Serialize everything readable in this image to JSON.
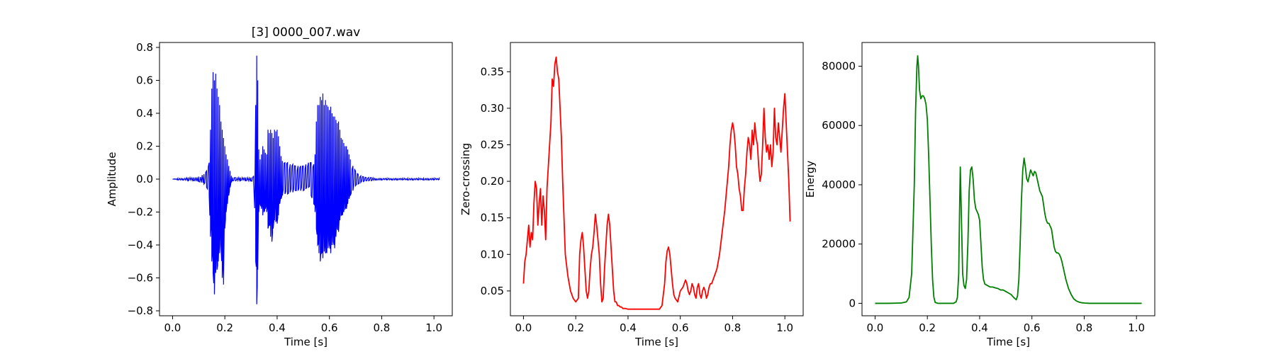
{
  "chart_data": [
    {
      "type": "line",
      "title": "[3] 0000_007.wav",
      "xlabel": "Time [s]",
      "ylabel": "Amplitude",
      "xlim": [
        -0.05,
        1.07
      ],
      "ylim": [
        -0.83,
        0.83
      ],
      "xticks": [
        0.0,
        0.2,
        0.4,
        0.6,
        0.8,
        1.0
      ],
      "xtick_labels": [
        "0.0",
        "0.2",
        "0.4",
        "0.6",
        "0.8",
        "1.0"
      ],
      "yticks": [
        -0.8,
        -0.6,
        -0.4,
        -0.2,
        0.0,
        0.2,
        0.4,
        0.6,
        0.8
      ],
      "ytick_labels": [
        "−0.8",
        "−0.6",
        "−0.4",
        "−0.2",
        "0.0",
        "0.2",
        "0.4",
        "0.6",
        "0.8"
      ],
      "grid": false,
      "color": "#0000ff",
      "series": [
        {
          "x": [
            0.0,
            0.02,
            0.04,
            0.06,
            0.08,
            0.1,
            0.12,
            0.13,
            0.14,
            0.145,
            0.15,
            0.155,
            0.16,
            0.165,
            0.17,
            0.175,
            0.18,
            0.185,
            0.19,
            0.195,
            0.2,
            0.205,
            0.21,
            0.215,
            0.22,
            0.225,
            0.23,
            0.24,
            0.26,
            0.28,
            0.3,
            0.31,
            0.318,
            0.322,
            0.326,
            0.33,
            0.335,
            0.34,
            0.345,
            0.35,
            0.355,
            0.36,
            0.365,
            0.37,
            0.375,
            0.38,
            0.385,
            0.39,
            0.395,
            0.4,
            0.405,
            0.41,
            0.415,
            0.42,
            0.43,
            0.44,
            0.45,
            0.46,
            0.47,
            0.48,
            0.49,
            0.5,
            0.51,
            0.52,
            0.53,
            0.54,
            0.545,
            0.55,
            0.555,
            0.56,
            0.565,
            0.57,
            0.575,
            0.58,
            0.585,
            0.59,
            0.595,
            0.6,
            0.605,
            0.61,
            0.615,
            0.62,
            0.625,
            0.63,
            0.635,
            0.64,
            0.645,
            0.65,
            0.655,
            0.66,
            0.665,
            0.67,
            0.675,
            0.68,
            0.69,
            0.7,
            0.71,
            0.72,
            0.73,
            0.74,
            0.75,
            0.76,
            0.78,
            0.8,
            0.82,
            0.84,
            0.86,
            0.88,
            0.9,
            0.92,
            0.94,
            0.96,
            0.98,
            1.0,
            1.02
          ],
          "y_upper": [
            0.0,
            0.005,
            0.005,
            0.01,
            0.01,
            0.015,
            0.03,
            0.05,
            0.1,
            0.3,
            0.55,
            0.65,
            0.6,
            0.64,
            0.55,
            0.5,
            0.45,
            0.35,
            0.3,
            0.25,
            0.2,
            0.15,
            0.12,
            0.08,
            0.05,
            0.02,
            0.01,
            0.01,
            0.01,
            0.01,
            0.01,
            0.02,
            0.45,
            0.75,
            0.6,
            0.18,
            0.12,
            0.15,
            0.2,
            0.18,
            0.16,
            0.15,
            0.3,
            0.28,
            0.3,
            0.28,
            0.25,
            0.3,
            0.29,
            0.3,
            0.26,
            0.2,
            0.14,
            0.11,
            0.1,
            0.1,
            0.09,
            0.09,
            0.08,
            0.08,
            0.08,
            0.08,
            0.09,
            0.1,
            0.1,
            0.09,
            0.15,
            0.35,
            0.45,
            0.45,
            0.5,
            0.48,
            0.52,
            0.45,
            0.48,
            0.45,
            0.44,
            0.42,
            0.44,
            0.4,
            0.38,
            0.38,
            0.36,
            0.34,
            0.35,
            0.3,
            0.25,
            0.24,
            0.22,
            0.2,
            0.2,
            0.18,
            0.15,
            0.12,
            0.08,
            0.05,
            0.03,
            0.02,
            0.015,
            0.01,
            0.01,
            0.01,
            0.005,
            0.005,
            0.005,
            0.005,
            0.005,
            0.005,
            0.005,
            0.005,
            0.005,
            0.005,
            0.005,
            0.005,
            0.005
          ],
          "y_lower": [
            0.0,
            -0.005,
            -0.005,
            -0.01,
            -0.01,
            -0.015,
            -0.03,
            -0.05,
            -0.1,
            -0.35,
            -0.5,
            -0.57,
            -0.7,
            -0.57,
            -0.55,
            -0.5,
            -0.45,
            -0.4,
            -0.6,
            -0.64,
            -0.3,
            -0.2,
            -0.15,
            -0.1,
            -0.05,
            -0.02,
            -0.01,
            -0.01,
            -0.01,
            -0.01,
            -0.01,
            -0.02,
            -0.5,
            -0.76,
            -0.55,
            -0.2,
            -0.15,
            -0.18,
            -0.22,
            -0.2,
            -0.18,
            -0.2,
            -0.3,
            -0.28,
            -0.35,
            -0.38,
            -0.3,
            -0.25,
            -0.26,
            -0.27,
            -0.22,
            -0.15,
            -0.12,
            -0.1,
            -0.09,
            -0.09,
            -0.08,
            -0.08,
            -0.07,
            -0.07,
            -0.07,
            -0.07,
            -0.06,
            -0.05,
            -0.1,
            -0.15,
            -0.2,
            -0.3,
            -0.4,
            -0.45,
            -0.5,
            -0.45,
            -0.48,
            -0.44,
            -0.45,
            -0.45,
            -0.42,
            -0.4,
            -0.45,
            -0.4,
            -0.38,
            -0.42,
            -0.35,
            -0.3,
            -0.32,
            -0.25,
            -0.22,
            -0.22,
            -0.2,
            -0.18,
            -0.18,
            -0.15,
            -0.12,
            -0.1,
            -0.07,
            -0.04,
            -0.03,
            -0.02,
            -0.015,
            -0.01,
            -0.01,
            -0.01,
            -0.005,
            -0.005,
            -0.005,
            -0.005,
            -0.005,
            -0.005,
            -0.005,
            -0.005,
            -0.005,
            -0.005,
            -0.005,
            -0.005,
            -0.005
          ]
        }
      ]
    },
    {
      "type": "line",
      "title": "",
      "xlabel": "Time [s]",
      "ylabel": "Zero-crossing",
      "xlim": [
        -0.05,
        1.07
      ],
      "ylim": [
        0.016,
        0.39
      ],
      "xticks": [
        0.0,
        0.2,
        0.4,
        0.6,
        0.8,
        1.0
      ],
      "xtick_labels": [
        "0.0",
        "0.2",
        "0.4",
        "0.6",
        "0.8",
        "1.0"
      ],
      "yticks": [
        0.05,
        0.1,
        0.15,
        0.2,
        0.25,
        0.3,
        0.35
      ],
      "ytick_labels": [
        "0.05",
        "0.10",
        "0.15",
        "0.20",
        "0.25",
        "0.30",
        "0.35"
      ],
      "grid": false,
      "color": "#ff0000",
      "series": [
        {
          "x": [
            0.0,
            0.005,
            0.01,
            0.015,
            0.02,
            0.025,
            0.03,
            0.035,
            0.04,
            0.045,
            0.05,
            0.055,
            0.06,
            0.065,
            0.07,
            0.075,
            0.08,
            0.085,
            0.09,
            0.095,
            0.1,
            0.105,
            0.11,
            0.115,
            0.12,
            0.125,
            0.13,
            0.135,
            0.14,
            0.145,
            0.15,
            0.155,
            0.16,
            0.17,
            0.18,
            0.19,
            0.2,
            0.21,
            0.215,
            0.22,
            0.225,
            0.23,
            0.235,
            0.24,
            0.245,
            0.25,
            0.255,
            0.26,
            0.265,
            0.27,
            0.275,
            0.28,
            0.285,
            0.29,
            0.295,
            0.3,
            0.305,
            0.31,
            0.315,
            0.32,
            0.325,
            0.33,
            0.335,
            0.34,
            0.345,
            0.35,
            0.355,
            0.36,
            0.365,
            0.37,
            0.375,
            0.38,
            0.39,
            0.4,
            0.42,
            0.44,
            0.46,
            0.48,
            0.5,
            0.52,
            0.53,
            0.54,
            0.545,
            0.55,
            0.555,
            0.56,
            0.565,
            0.57,
            0.575,
            0.58,
            0.59,
            0.6,
            0.61,
            0.62,
            0.625,
            0.63,
            0.635,
            0.64,
            0.645,
            0.65,
            0.655,
            0.66,
            0.665,
            0.67,
            0.675,
            0.68,
            0.685,
            0.69,
            0.695,
            0.7,
            0.705,
            0.71,
            0.715,
            0.72,
            0.725,
            0.73,
            0.74,
            0.75,
            0.76,
            0.77,
            0.78,
            0.785,
            0.79,
            0.795,
            0.8,
            0.805,
            0.81,
            0.815,
            0.82,
            0.825,
            0.83,
            0.835,
            0.84,
            0.845,
            0.85,
            0.855,
            0.86,
            0.865,
            0.87,
            0.875,
            0.88,
            0.885,
            0.89,
            0.895,
            0.9,
            0.905,
            0.91,
            0.915,
            0.92,
            0.925,
            0.93,
            0.935,
            0.94,
            0.945,
            0.95,
            0.955,
            0.96,
            0.965,
            0.97,
            0.975,
            0.98,
            0.985,
            0.99,
            0.995,
            1.0,
            1.005,
            1.01,
            1.015,
            1.02
          ],
          "y": [
            0.06,
            0.09,
            0.1,
            0.12,
            0.14,
            0.11,
            0.13,
            0.12,
            0.17,
            0.2,
            0.19,
            0.14,
            0.17,
            0.19,
            0.14,
            0.18,
            0.16,
            0.12,
            0.19,
            0.22,
            0.25,
            0.28,
            0.34,
            0.33,
            0.36,
            0.37,
            0.35,
            0.34,
            0.3,
            0.26,
            0.2,
            0.15,
            0.1,
            0.07,
            0.05,
            0.04,
            0.035,
            0.04,
            0.1,
            0.12,
            0.13,
            0.11,
            0.08,
            0.05,
            0.04,
            0.05,
            0.08,
            0.1,
            0.11,
            0.13,
            0.155,
            0.14,
            0.12,
            0.1,
            0.06,
            0.035,
            0.04,
            0.08,
            0.11,
            0.14,
            0.155,
            0.14,
            0.11,
            0.08,
            0.05,
            0.035,
            0.035,
            0.03,
            0.03,
            0.028,
            0.028,
            0.026,
            0.026,
            0.025,
            0.025,
            0.025,
            0.025,
            0.025,
            0.025,
            0.025,
            0.03,
            0.06,
            0.09,
            0.105,
            0.11,
            0.1,
            0.08,
            0.06,
            0.045,
            0.04,
            0.035,
            0.05,
            0.055,
            0.065,
            0.06,
            0.05,
            0.045,
            0.05,
            0.06,
            0.055,
            0.045,
            0.04,
            0.055,
            0.06,
            0.045,
            0.04,
            0.05,
            0.055,
            0.05,
            0.04,
            0.045,
            0.055,
            0.06,
            0.06,
            0.065,
            0.07,
            0.08,
            0.1,
            0.13,
            0.16,
            0.2,
            0.22,
            0.25,
            0.27,
            0.28,
            0.27,
            0.25,
            0.22,
            0.21,
            0.19,
            0.18,
            0.16,
            0.16,
            0.19,
            0.21,
            0.24,
            0.26,
            0.25,
            0.23,
            0.27,
            0.25,
            0.28,
            0.26,
            0.25,
            0.22,
            0.2,
            0.21,
            0.25,
            0.3,
            0.26,
            0.24,
            0.25,
            0.23,
            0.25,
            0.22,
            0.24,
            0.3,
            0.26,
            0.25,
            0.28,
            0.26,
            0.24,
            0.27,
            0.3,
            0.32,
            0.28,
            0.24,
            0.2,
            0.145
          ]
        }
      ]
    },
    {
      "type": "line",
      "title": "",
      "xlabel": "Time [s]",
      "ylabel": "Energy",
      "xlim": [
        -0.05,
        1.07
      ],
      "ylim": [
        -4200,
        88000
      ],
      "xticks": [
        0.0,
        0.2,
        0.4,
        0.6,
        0.8,
        1.0
      ],
      "xtick_labels": [
        "0.0",
        "0.2",
        "0.4",
        "0.6",
        "0.8",
        "1.0"
      ],
      "yticks": [
        0,
        20000,
        40000,
        60000,
        80000
      ],
      "ytick_labels": [
        "0",
        "20000",
        "40000",
        "60000",
        "80000"
      ],
      "grid": false,
      "color": "#008000",
      "series": [
        {
          "x": [
            0.0,
            0.05,
            0.1,
            0.12,
            0.13,
            0.14,
            0.15,
            0.155,
            0.16,
            0.163,
            0.166,
            0.17,
            0.175,
            0.18,
            0.185,
            0.19,
            0.195,
            0.2,
            0.205,
            0.21,
            0.215,
            0.22,
            0.225,
            0.23,
            0.24,
            0.26,
            0.28,
            0.3,
            0.31,
            0.315,
            0.32,
            0.323,
            0.326,
            0.33,
            0.335,
            0.34,
            0.345,
            0.35,
            0.355,
            0.36,
            0.365,
            0.37,
            0.375,
            0.38,
            0.385,
            0.39,
            0.395,
            0.4,
            0.405,
            0.41,
            0.415,
            0.42,
            0.43,
            0.44,
            0.45,
            0.46,
            0.47,
            0.48,
            0.49,
            0.5,
            0.51,
            0.52,
            0.53,
            0.54,
            0.545,
            0.55,
            0.555,
            0.56,
            0.565,
            0.57,
            0.575,
            0.58,
            0.585,
            0.59,
            0.595,
            0.6,
            0.605,
            0.61,
            0.615,
            0.62,
            0.625,
            0.63,
            0.635,
            0.64,
            0.645,
            0.65,
            0.655,
            0.66,
            0.665,
            0.67,
            0.675,
            0.68,
            0.685,
            0.69,
            0.695,
            0.7,
            0.705,
            0.71,
            0.715,
            0.72,
            0.725,
            0.73,
            0.74,
            0.75,
            0.76,
            0.77,
            0.78,
            0.79,
            0.8,
            0.82,
            0.85,
            0.9,
            0.95,
            1.0,
            1.02
          ],
          "y": [
            0,
            0,
            100,
            500,
            2000,
            10000,
            40000,
            65000,
            80000,
            83500,
            80000,
            72000,
            69000,
            70000,
            70000,
            69000,
            67000,
            62000,
            50000,
            35000,
            20000,
            8000,
            2000,
            300,
            0,
            0,
            0,
            0,
            500,
            2000,
            10000,
            30000,
            46000,
            30000,
            10000,
            6000,
            5000,
            8000,
            20000,
            38000,
            45000,
            46000,
            42000,
            35000,
            32000,
            31000,
            30000,
            28000,
            20000,
            12000,
            8000,
            6500,
            6000,
            5500,
            5500,
            5200,
            5000,
            4500,
            4500,
            4000,
            3500,
            3000,
            2000,
            1200,
            2500,
            8000,
            20000,
            35000,
            45000,
            49000,
            46000,
            42000,
            41000,
            43000,
            45000,
            44000,
            43000,
            44500,
            44000,
            42000,
            40000,
            38000,
            37000,
            36000,
            33000,
            30000,
            28000,
            27000,
            27000,
            26000,
            25000,
            22000,
            19000,
            17500,
            17000,
            17000,
            16500,
            15500,
            14000,
            12000,
            10000,
            8000,
            5000,
            3000,
            1500,
            800,
            400,
            200,
            100,
            0,
            0,
            0,
            0,
            0,
            0
          ]
        }
      ]
    }
  ]
}
